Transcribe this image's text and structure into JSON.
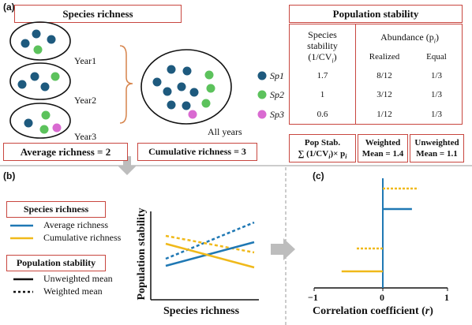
{
  "colors": {
    "sp1": "#1e5a7e",
    "sp2": "#5cc25c",
    "sp3": "#d96ad1",
    "red": "#c8463f",
    "average": "#1f78b4",
    "cumulative": "#f0b91a",
    "arrow": "#bdbdbd"
  },
  "panel_a": {
    "tag": "(a)",
    "richness_title": "Species richness",
    "years": [
      "Year1",
      "Year2",
      "Year3"
    ],
    "all_years": "All years",
    "species": [
      "Sp1",
      "Sp2",
      "Sp3"
    ],
    "average_richness": "Average richness = 2",
    "cumulative_richness": "Cumulative richness = 3",
    "stability_title": "Population stability",
    "col_stability_l1": "Species",
    "col_stability_l2": "stability",
    "col_stability_l3": "(1/CV",
    "col_stability_sub": "i",
    "col_stability_end": ")",
    "abundance_label": "Abundance (p",
    "abundance_sub": "i",
    "abundance_end": ")",
    "realized": "Realized",
    "equal": "Equal",
    "rows": [
      {
        "stability": "1.7",
        "realized": "8/12",
        "equal": "1/3"
      },
      {
        "stability": "1",
        "realized": "3/12",
        "equal": "1/3"
      },
      {
        "stability": "0.6",
        "realized": "1/12",
        "equal": "1/3"
      }
    ],
    "popstab_l1": "Pop Stab.",
    "popstab_l2": "∑ (1/CV",
    "popstab_sub": "i",
    "popstab_end": ")× p",
    "popstab_sub2": "i",
    "weighted_l1": "Weighted",
    "weighted_l2": "Mean = 1.4",
    "unweighted_l1": "Unweighted",
    "unweighted_l2": "Mean = 1.1"
  },
  "panel_b": {
    "tag": "(b)",
    "legend_richness_title": "Species richness",
    "legend_average": "Average richness",
    "legend_cumulative": "Cumulative richness",
    "legend_stability_title": "Population stability",
    "legend_unweighted": "Unweighted mean",
    "legend_weighted": "Weighted mean",
    "xlabel": "Species richness",
    "ylabel": "Population stability"
  },
  "panel_c": {
    "tag": "(c)",
    "tick_neg": "−1",
    "tick_zero": "0",
    "tick_pos": "1",
    "xlabel_prefix": "Correlation coefficient (",
    "xlabel_var": "r",
    "xlabel_suffix": ")"
  },
  "chart_data": {
    "type": "bar",
    "xlim": [
      -1,
      1
    ],
    "series": [
      {
        "richness": "Cumulative richness",
        "stability": "Weighted mean",
        "style": "dashed",
        "value": 0.55
      },
      {
        "richness": "Average richness",
        "stability": "Unweighted mean",
        "style": "solid",
        "value": 0.45
      },
      {
        "richness": "Cumulative richness",
        "stability": "Weighted mean",
        "style": "dashed",
        "value": -0.38
      },
      {
        "richness": "Cumulative richness",
        "stability": "Unweighted mean",
        "style": "solid",
        "value": -0.6
      }
    ]
  }
}
